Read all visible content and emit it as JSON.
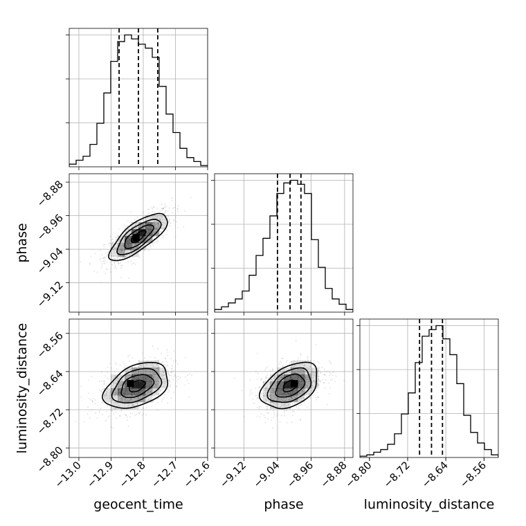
{
  "chart_data": {
    "type": "corner",
    "parameters": [
      "geocent_time",
      "phase",
      "luminosity_distance"
    ],
    "axis_labels": {
      "geocent_time": "geocent_time",
      "phase": "phase",
      "luminosity_distance": "luminosity_distance"
    },
    "ranges": {
      "geocent_time": [
        -13.03,
        -12.6
      ],
      "phase": [
        -9.19,
        -8.86
      ],
      "luminosity_distance": [
        -8.82,
        -8.53
      ]
    },
    "ticks": {
      "geocent_time": [
        "−13.0",
        "−12.9",
        "−12.8",
        "−12.7",
        "−12.6"
      ],
      "phase": [
        "−9.12",
        "−9.04",
        "−8.96",
        "−8.88"
      ],
      "luminosity_distance": [
        "−8.80",
        "−8.72",
        "−8.64",
        "−8.56"
      ]
    },
    "tick_values": {
      "geocent_time": [
        -13.0,
        -12.9,
        -12.8,
        -12.7,
        -12.6
      ],
      "phase": [
        -9.12,
        -9.04,
        -8.96,
        -8.88
      ],
      "luminosity_distance": [
        -8.8,
        -8.72,
        -8.64,
        -8.56
      ]
    },
    "quantiles": {
      "geocent_time": [
        -12.875,
        -12.815,
        -12.755
      ],
      "phase": [
        -9.04,
        -9.01,
        -8.984
      ],
      "luminosity_distance": [
        -8.695,
        -8.67,
        -8.647
      ]
    },
    "histograms": {
      "geocent_time": [
        0.02,
        0.05,
        0.08,
        0.17,
        0.33,
        0.56,
        0.8,
        0.95,
        1.0,
        0.97,
        0.93,
        0.9,
        0.83,
        0.61,
        0.4,
        0.26,
        0.14,
        0.07,
        0.04,
        0.01
      ],
      "phase": [
        0.02,
        0.04,
        0.07,
        0.1,
        0.16,
        0.28,
        0.43,
        0.56,
        0.73,
        0.9,
        0.98,
        1.0,
        0.97,
        0.9,
        0.55,
        0.34,
        0.18,
        0.1,
        0.06,
        0.02
      ],
      "luminosity_distance": [
        0.01,
        0.02,
        0.04,
        0.06,
        0.1,
        0.18,
        0.33,
        0.49,
        0.72,
        0.92,
        0.97,
        1.0,
        0.9,
        0.78,
        0.56,
        0.32,
        0.19,
        0.11,
        0.06,
        0.02
      ]
    },
    "pairs": [
      {
        "x": "geocent_time",
        "y": "phase",
        "center": [
          -12.815,
          -9.01
        ],
        "peak": [
          -12.822,
          -9.012
        ],
        "sd": [
          0.045,
          0.028
        ],
        "rho": 0.75
      },
      {
        "x": "geocent_time",
        "y": "luminosity_distance",
        "center": [
          -12.82,
          -8.67
        ],
        "peak": [
          -12.84,
          -8.665
        ],
        "sd": [
          0.05,
          0.024
        ],
        "rho": 0.4
      },
      {
        "x": "phase",
        "y": "luminosity_distance",
        "center": [
          -9.01,
          -8.67
        ],
        "peak": [
          -9.0,
          -8.665
        ],
        "sd": [
          0.034,
          0.024
        ],
        "rho": 0.4
      }
    ],
    "contour_levels": [
      0.5,
      1.0,
      1.5,
      2.0
    ],
    "colors": {
      "line": "#000000",
      "density": "#000000",
      "points": "#8c8c8c",
      "grid": "#b0b0b0"
    }
  }
}
